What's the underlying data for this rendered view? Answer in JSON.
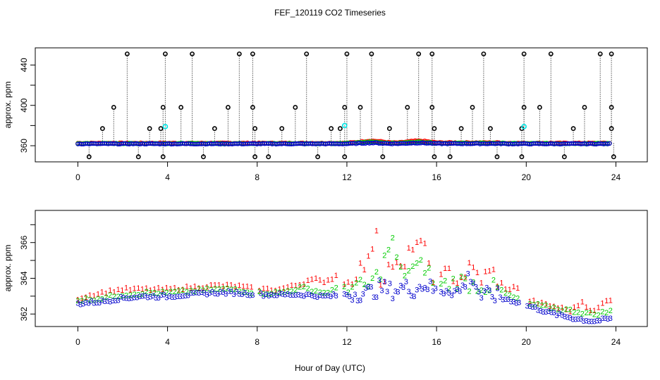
{
  "figure": {
    "title": "FEF_120119  CO2 Timeseries",
    "xlabel": "Hour of Day (UTC)"
  },
  "colors": {
    "background": "#ffffff",
    "axis": "#000000",
    "series1": "#ff0000",
    "series2": "#00cc00",
    "series3": "#0000cc",
    "series4": "#00e5e5",
    "flag": "#000000"
  },
  "chart_data": [
    {
      "id": "top",
      "type": "scatter",
      "title": "FEF_120119  CO2 Timeseries",
      "xlabel": "",
      "ylabel": "approx. ppm",
      "xlim": [
        -1.9,
        25.4
      ],
      "ylim": [
        344,
        457
      ],
      "xticks": [
        0,
        4,
        8,
        12,
        16,
        20,
        24
      ],
      "yticks": [
        360,
        400,
        440
      ],
      "ytick_minor": [
        380,
        420
      ],
      "baseline": 362.5,
      "spikes_high": [
        2.2,
        3.9,
        5.1,
        7.2,
        7.8,
        10.2,
        12.0,
        13.1,
        15.2,
        15.8,
        18.1,
        19.9,
        21.1,
        23.3,
        23.8
      ],
      "high_value": 451,
      "spikes_mid": [
        1.6,
        3.8,
        4.6,
        6.7,
        7.8,
        9.7,
        11.9,
        12.6,
        14.7,
        15.8,
        17.6,
        19.9,
        20.6,
        22.6,
        23.8
      ],
      "mid_value": 398,
      "spikes_low": [
        1.1,
        3.2,
        3.7,
        6.1,
        7.9,
        9.1,
        11.3,
        11.7,
        13.9,
        15.9,
        17.1,
        18.4,
        19.8,
        22.1,
        23.8
      ],
      "low_value": 377,
      "spikes_bottom": [
        0.5,
        2.7,
        3.8,
        5.6,
        7.9,
        8.5,
        10.7,
        11.9,
        13.6,
        15.9,
        16.6,
        18.7,
        19.8,
        21.7,
        23.9
      ],
      "bottom_value": 349,
      "series4_points": [
        {
          "x": 3.9,
          "y": 379
        },
        {
          "x": 11.9,
          "y": 380
        },
        {
          "x": 19.9,
          "y": 379
        }
      ]
    },
    {
      "id": "bottom",
      "type": "line",
      "title": "",
      "xlabel": "Hour of Day (UTC)",
      "ylabel": "approx. ppm",
      "xlim": [
        -1.9,
        25.4
      ],
      "ylim": [
        361.3,
        367.8
      ],
      "xticks": [
        0,
        4,
        8,
        12,
        16,
        20,
        24
      ],
      "yticks": [
        362,
        364,
        366
      ],
      "ytick_minor": [
        363,
        365,
        367
      ],
      "gaps": [
        [
          7.85,
          8.05
        ],
        [
          11.6,
          11.85
        ],
        [
          16.0,
          16.1
        ],
        [
          19.75,
          20.0
        ]
      ],
      "series": [
        {
          "name": "1",
          "symbol": "1",
          "x": [
            0,
            1,
            2,
            3,
            4,
            5,
            6,
            7,
            8,
            9,
            10,
            10.5,
            11,
            11.5,
            12,
            12.5,
            13,
            13.3,
            13.5,
            14,
            14.5,
            15,
            15.5,
            16,
            16.5,
            17,
            17.5,
            18,
            18.5,
            19,
            19.5,
            20,
            21,
            22,
            22.5,
            23,
            23.5,
            24
          ],
          "y": [
            362.9,
            363.2,
            363.4,
            363.4,
            363.4,
            363.5,
            363.6,
            363.6,
            363.4,
            363.4,
            363.7,
            364.1,
            363.7,
            364.2,
            363.6,
            364.5,
            364.9,
            367.2,
            363.9,
            364.9,
            364.3,
            366.2,
            365.5,
            363.6,
            364.4,
            363.9,
            364.6,
            364.0,
            364.4,
            363.3,
            363.6,
            362.8,
            362.5,
            362.2,
            362.7,
            362.1,
            362.7,
            363.0
          ]
        },
        {
          "name": "2",
          "symbol": "2",
          "x": [
            0,
            1,
            2,
            3,
            4,
            5,
            6,
            7,
            8,
            9,
            10,
            11,
            12,
            12.5,
            13,
            13.5,
            14,
            14.4,
            15,
            15.5,
            16,
            16.5,
            17,
            17.5,
            18,
            18.5,
            19,
            20,
            21,
            22,
            23,
            24
          ],
          "y": [
            362.8,
            362.9,
            363.1,
            363.2,
            363.2,
            363.3,
            363.4,
            363.4,
            363.2,
            363.2,
            363.5,
            363.2,
            363.6,
            363.5,
            363.6,
            364.4,
            366.2,
            364.3,
            364.6,
            364.7,
            363.5,
            363.7,
            363.9,
            363.7,
            363.6,
            363.5,
            363.2,
            362.6,
            362.4,
            362.2,
            362.0,
            362.2
          ]
        },
        {
          "name": "3",
          "symbol": "3",
          "x": [
            0,
            1,
            2,
            3,
            4,
            5,
            6,
            7,
            8,
            9,
            10,
            11,
            12,
            12.5,
            13,
            13.5,
            14,
            14.5,
            15,
            15.5,
            16,
            16.5,
            17,
            17.5,
            18,
            18.5,
            19,
            20,
            21,
            22,
            23,
            24
          ],
          "y": [
            362.6,
            362.7,
            362.9,
            363.0,
            363.0,
            363.1,
            363.2,
            363.2,
            363.1,
            363.1,
            363.1,
            363.0,
            363.1,
            363.2,
            363.2,
            363.5,
            363.3,
            363.5,
            363.4,
            363.7,
            363.2,
            363.5,
            363.2,
            364.2,
            363.0,
            363.1,
            362.9,
            362.5,
            362.1,
            361.8,
            361.6,
            361.8
          ]
        }
      ]
    }
  ]
}
